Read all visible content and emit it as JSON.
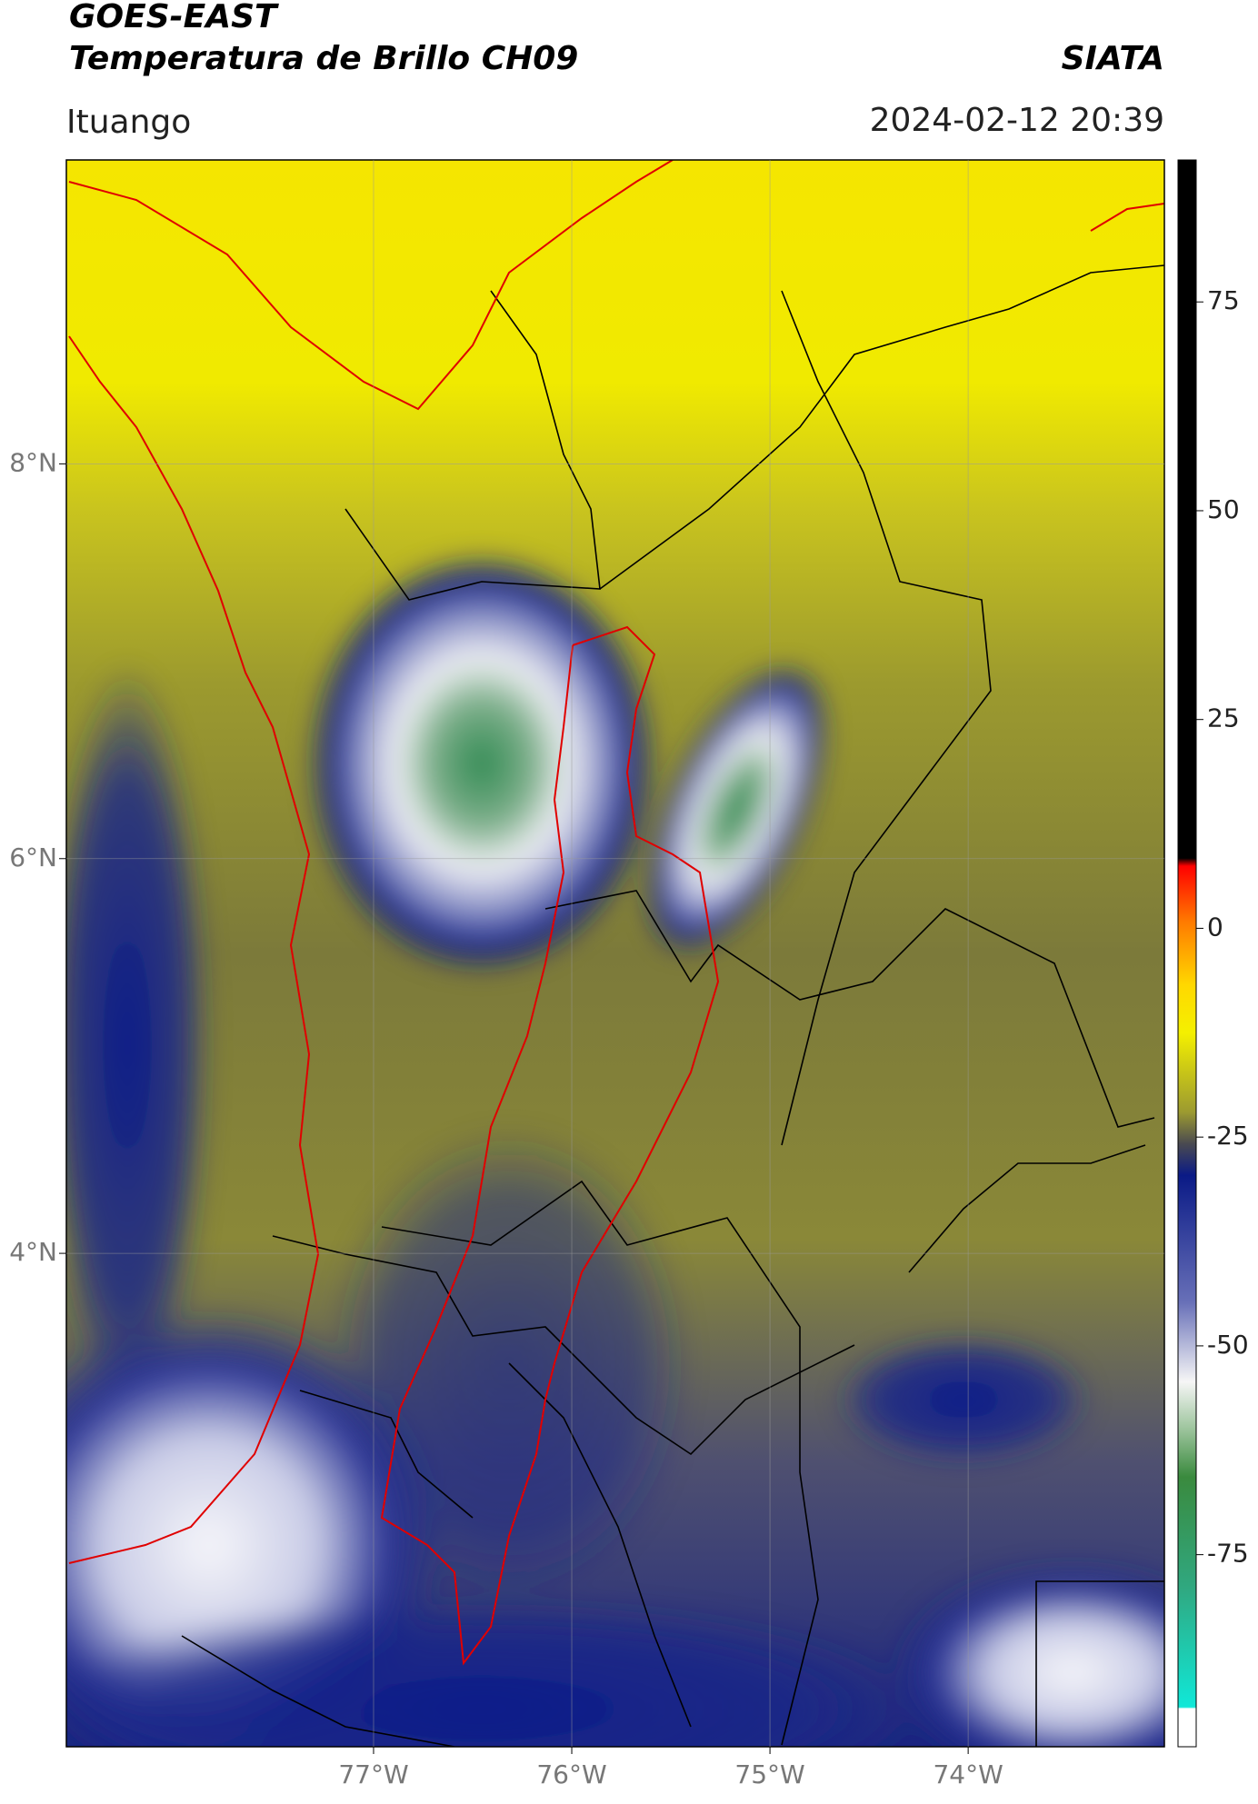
{
  "chart_data": {
    "type": "map",
    "title": "GOES-EAST",
    "subtitle": "Temperatura de Brillo CH09",
    "source": "SIATA",
    "location": "Ituango",
    "timestamp": "2024-02-12 20:39",
    "xlim": [
      -78.55,
      -73.01
    ],
    "ylim": [
      1.5,
      9.54
    ],
    "xticks": [
      {
        "value": -77,
        "label": "77°W"
      },
      {
        "value": -76,
        "label": "76°W"
      },
      {
        "value": -75,
        "label": "75°W"
      },
      {
        "value": -74,
        "label": "74°W"
      }
    ],
    "yticks": [
      {
        "value": 8,
        "label": "8°N"
      },
      {
        "value": 6,
        "label": "6°N"
      },
      {
        "value": 4,
        "label": "4°N"
      }
    ],
    "grid": true,
    "clim": [
      -98,
      92
    ],
    "cticks": [
      75,
      50,
      25,
      0,
      -25,
      -50,
      -75
    ]
  }
}
